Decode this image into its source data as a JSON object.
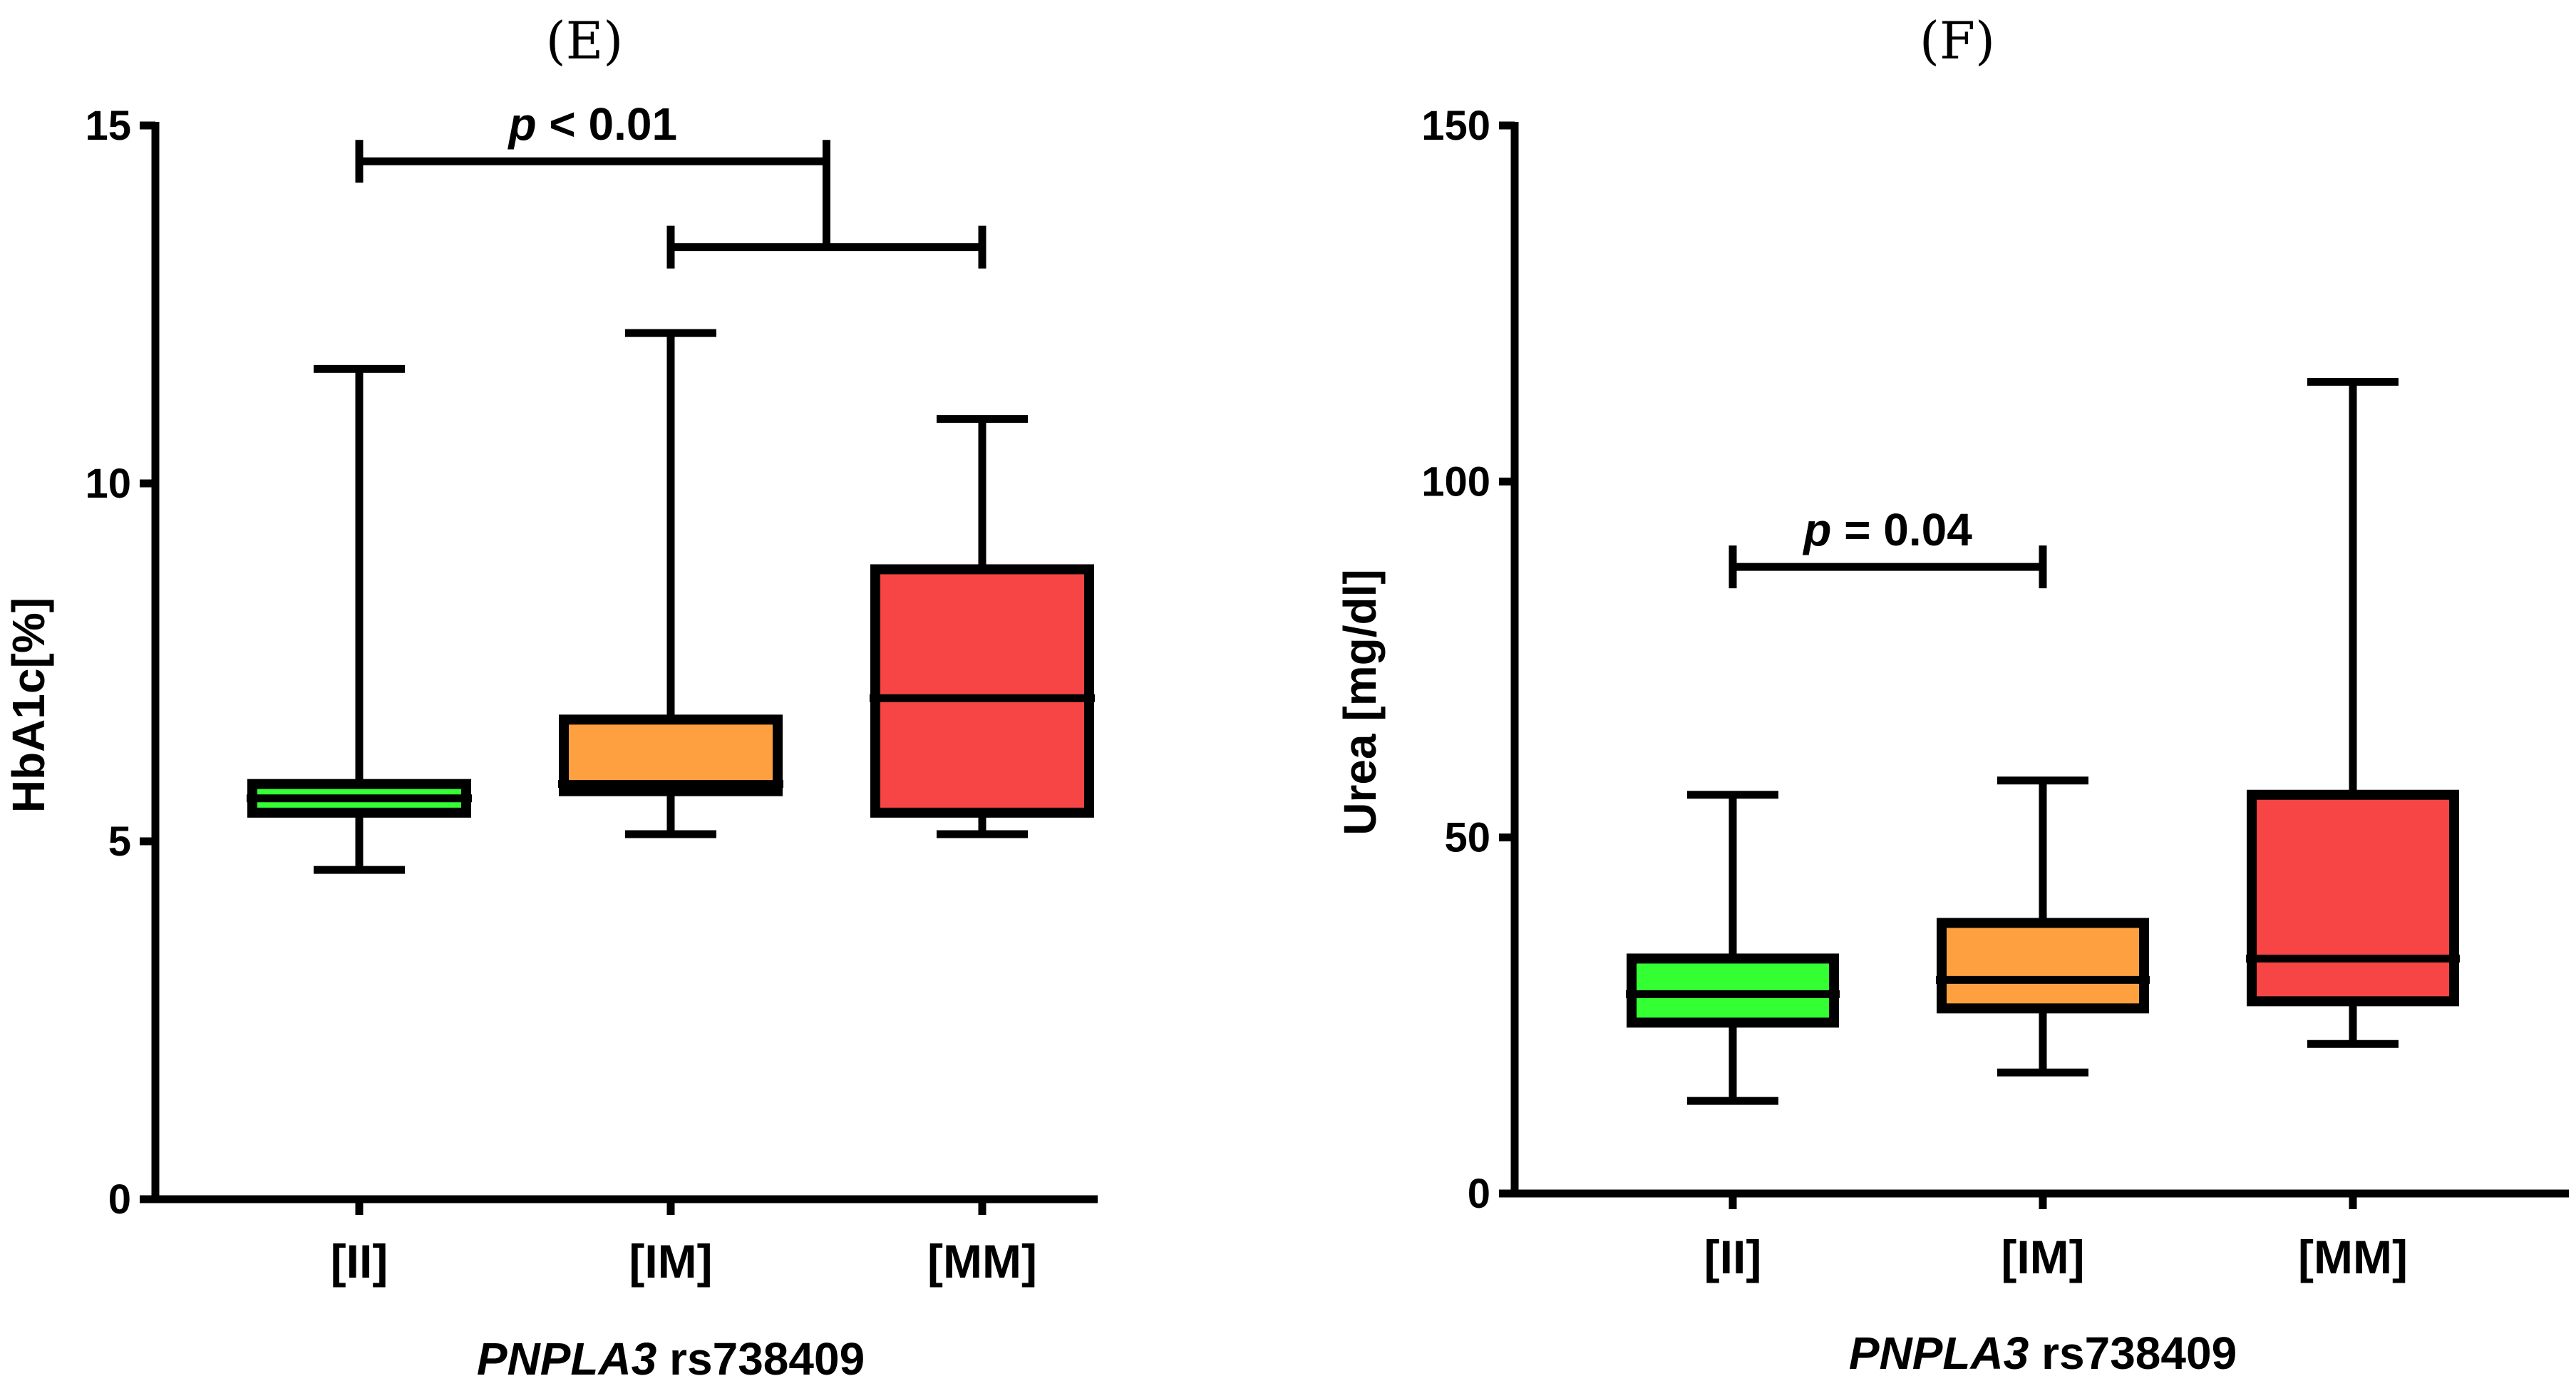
{
  "chart_data": [
    {
      "type": "box",
      "panel_label": "(E)",
      "title": "",
      "xlabel_italic": "PNPLA3",
      "xlabel_rest": " rs738409",
      "ylabel": "HbA1c[%]",
      "ylim": [
        0,
        15
      ],
      "yticks": [
        0,
        5,
        10,
        15
      ],
      "categories": [
        "[II]",
        "[IM]",
        "[MM]"
      ],
      "colors": [
        "#33ff33",
        "#ffa040",
        "#f74545"
      ],
      "boxes": [
        {
          "min": 4.6,
          "q1": 5.4,
          "median": 5.6,
          "q3": 5.8,
          "max": 11.6
        },
        {
          "min": 5.1,
          "q1": 5.7,
          "median": 5.8,
          "q3": 6.7,
          "max": 12.1
        },
        {
          "min": 5.1,
          "q1": 5.4,
          "median": 7.0,
          "q3": 8.8,
          "max": 10.9
        }
      ],
      "significance": [
        {
          "label_italic": "p",
          "label_rest": " < 0.01",
          "type": "one-vs-group",
          "from": 0,
          "to": [
            1,
            2
          ],
          "y_top": 14.5,
          "y_group": 13.3
        }
      ]
    },
    {
      "type": "box",
      "panel_label": "(F)",
      "title": "",
      "xlabel_italic": "PNPLA3",
      "xlabel_rest": " rs738409",
      "ylabel": "Urea [mg/dl]",
      "ylim": [
        0,
        150
      ],
      "yticks": [
        0,
        50,
        100,
        150
      ],
      "categories": [
        "[II]",
        "[IM]",
        "[MM]"
      ],
      "colors": [
        "#33ff33",
        "#ffa040",
        "#f74545"
      ],
      "boxes": [
        {
          "min": 13,
          "q1": 24,
          "median": 28,
          "q3": 33,
          "max": 56
        },
        {
          "min": 17,
          "q1": 26,
          "median": 30,
          "q3": 38,
          "max": 58
        },
        {
          "min": 21,
          "q1": 27,
          "median": 33,
          "q3": 56,
          "max": 114
        }
      ],
      "significance": [
        {
          "label_italic": "p",
          "label_rest": " = 0.04",
          "type": "pair",
          "from": 0,
          "to": [
            1
          ],
          "y_top": 88
        }
      ]
    }
  ]
}
